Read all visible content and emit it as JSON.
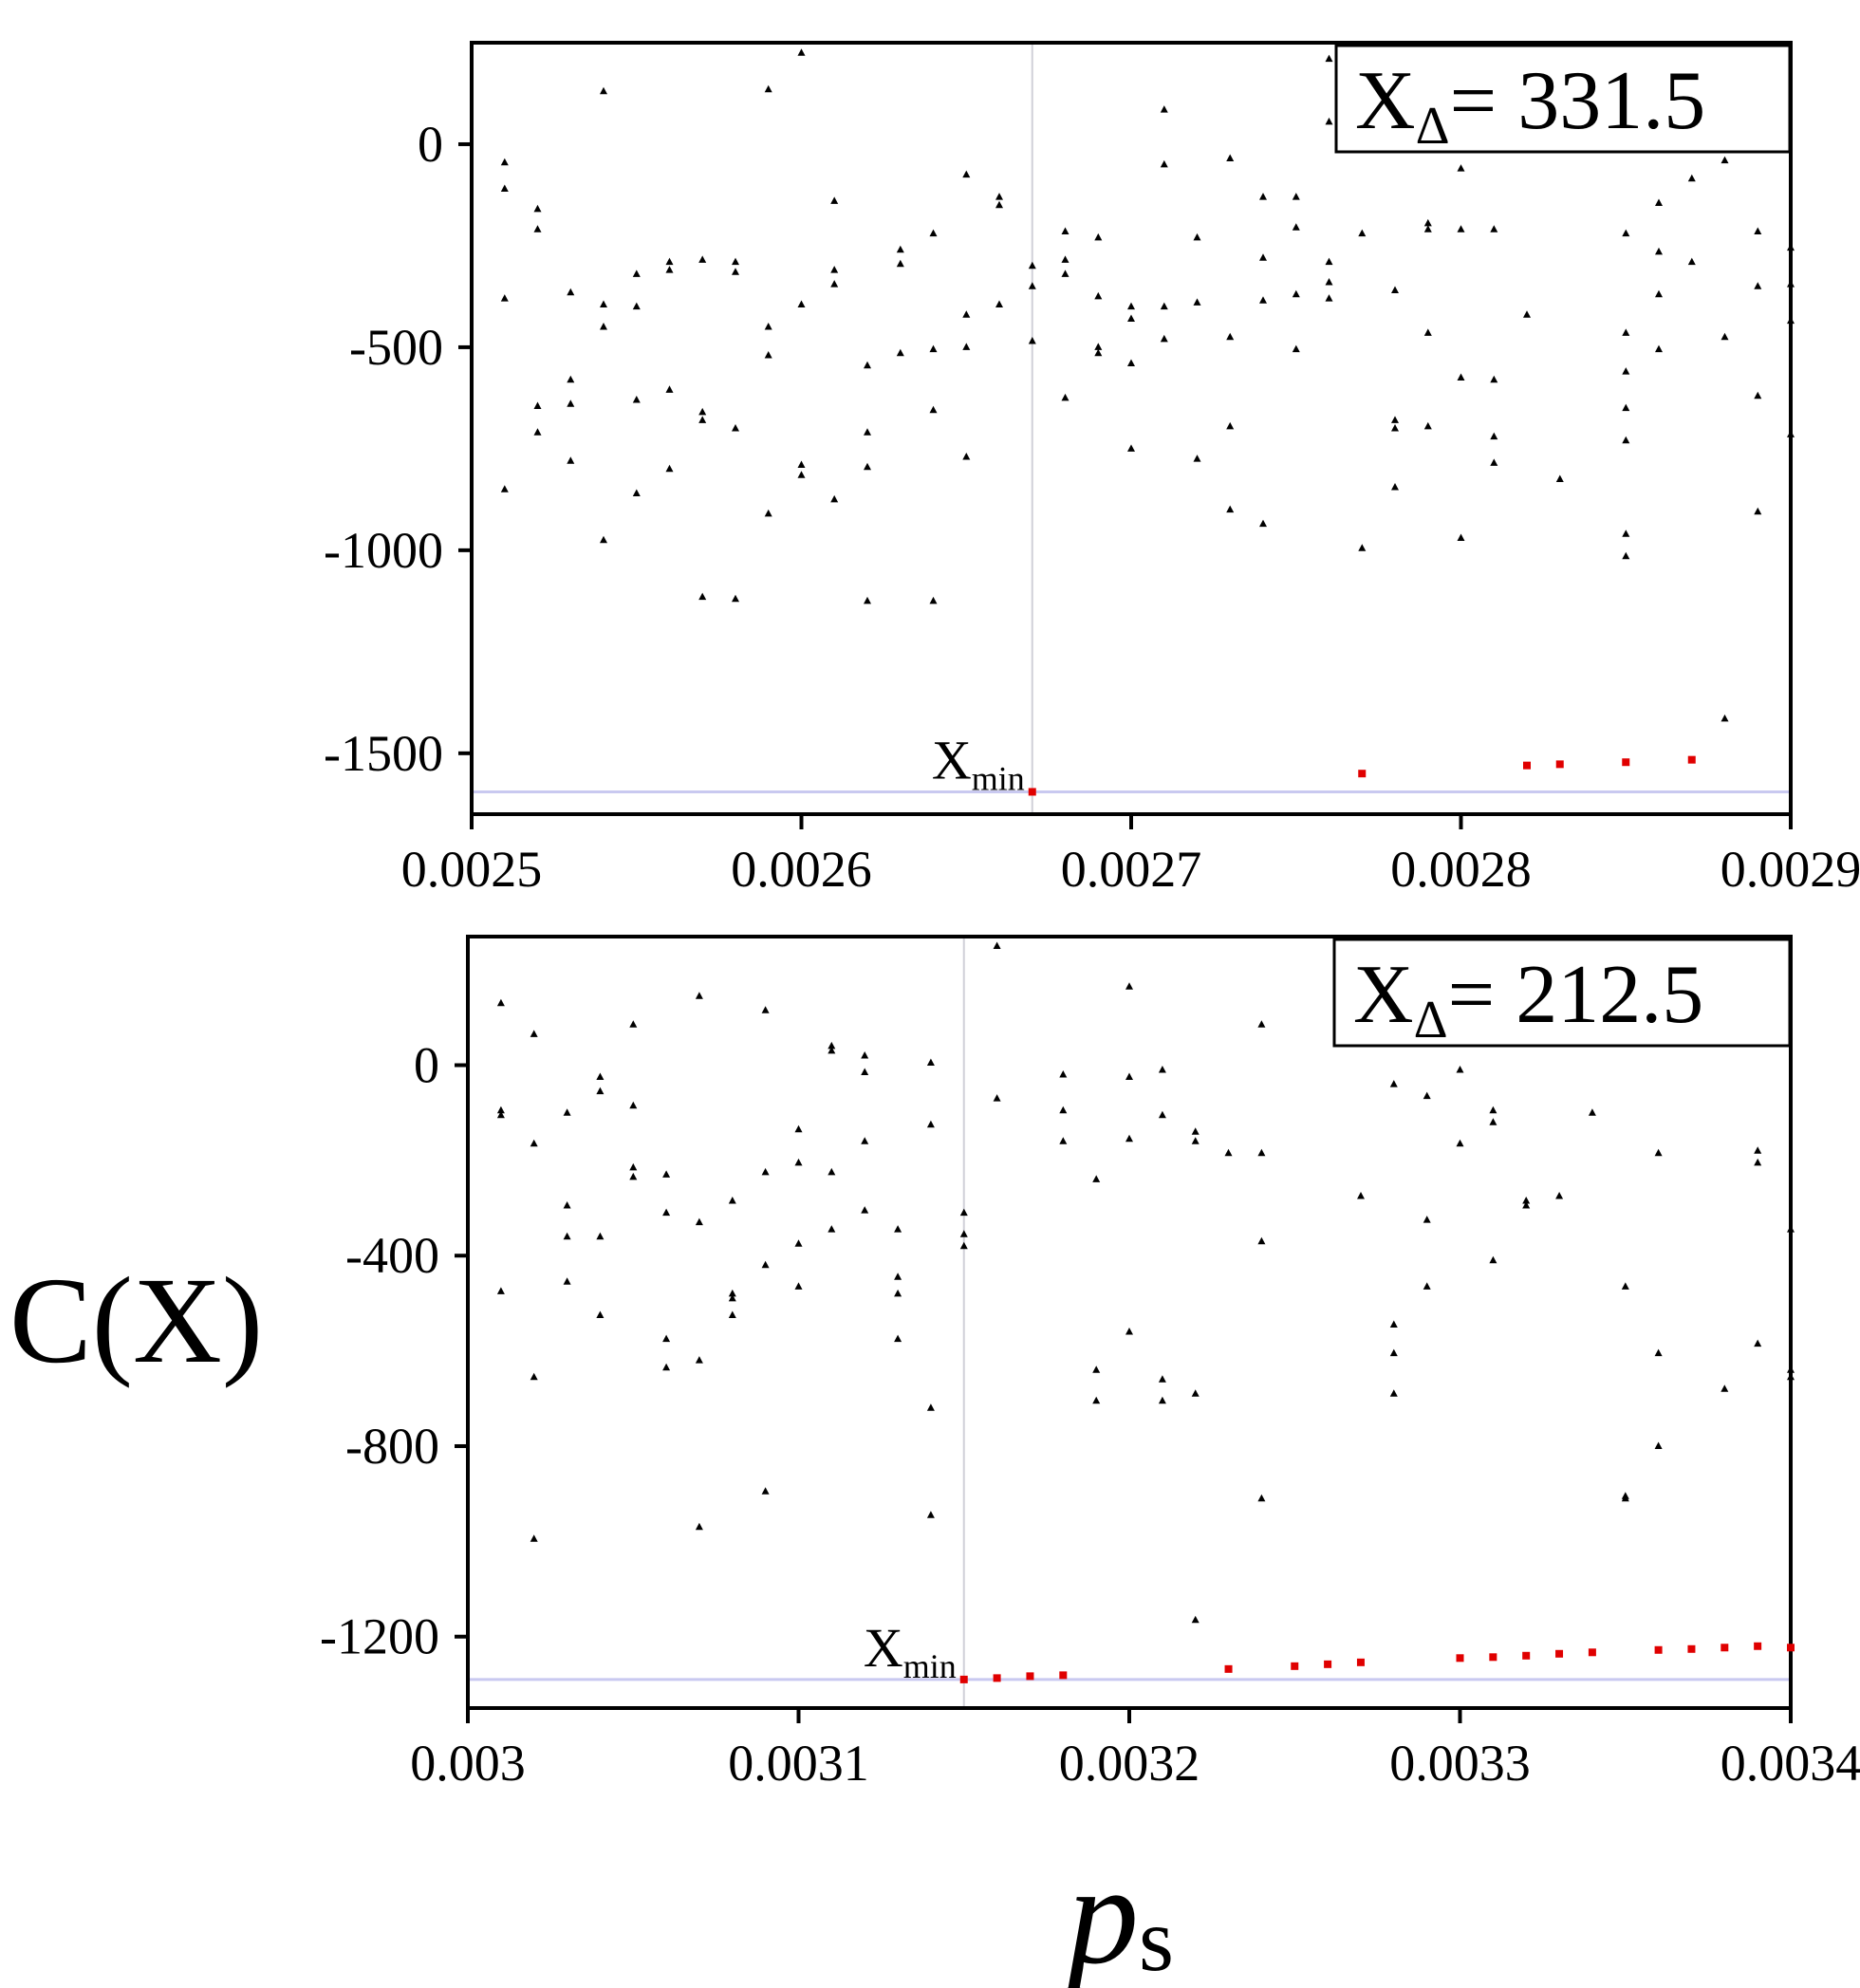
{
  "figure": {
    "ylabel": "C(X)",
    "xlabel": {
      "base": "p",
      "sub": "s"
    }
  },
  "colors": {
    "axis": "#000000",
    "marker": "#000000",
    "highlight": "#e00000",
    "min_line": "#c9c9f0",
    "vline": "#d0d0d8"
  },
  "chart_data": [
    {
      "type": "scatter",
      "xlim": [
        0.0025,
        0.0029
      ],
      "ylim": [
        -1650,
        250
      ],
      "xticks": [
        0.0025,
        0.0026,
        0.0027,
        0.0028,
        0.0029
      ],
      "xtick_labels": [
        "0.0025",
        "0.0026",
        "0.0027",
        "0.0028",
        "0.0029"
      ],
      "yticks": [
        0,
        -500,
        -1000,
        -1500
      ],
      "ytick_labels": [
        "0",
        "-500",
        "-1000",
        "-1500"
      ],
      "box": {
        "base": "X",
        "sub": "Δ",
        "value": "= 331.5"
      },
      "min_label": {
        "base": "X",
        "sub": "min"
      },
      "x_min": 0.00267,
      "y_min": -1595,
      "points": [
        [
          0.00251,
          -45
        ],
        [
          0.00251,
          -110
        ],
        [
          0.00251,
          -380
        ],
        [
          0.00251,
          -850
        ],
        [
          0.00252,
          -160
        ],
        [
          0.00252,
          -210
        ],
        [
          0.00252,
          -645
        ],
        [
          0.00252,
          -710
        ],
        [
          0.00253,
          -365
        ],
        [
          0.00253,
          -580
        ],
        [
          0.00253,
          -640
        ],
        [
          0.00253,
          -780
        ],
        [
          0.00254,
          130
        ],
        [
          0.00254,
          -395
        ],
        [
          0.00254,
          -450
        ],
        [
          0.00254,
          -975
        ],
        [
          0.00255,
          -320
        ],
        [
          0.00255,
          -400
        ],
        [
          0.00255,
          -630
        ],
        [
          0.00255,
          -860
        ],
        [
          0.00256,
          -290
        ],
        [
          0.00256,
          -310
        ],
        [
          0.00256,
          -605
        ],
        [
          0.00256,
          -800
        ],
        [
          0.00257,
          -285
        ],
        [
          0.00257,
          -660
        ],
        [
          0.00257,
          -680
        ],
        [
          0.00257,
          -1115
        ],
        [
          0.00258,
          -290
        ],
        [
          0.00258,
          -315
        ],
        [
          0.00258,
          -700
        ],
        [
          0.00258,
          -1120
        ],
        [
          0.00259,
          135
        ],
        [
          0.00259,
          -450
        ],
        [
          0.00259,
          -520
        ],
        [
          0.00259,
          -910
        ],
        [
          0.0026,
          225
        ],
        [
          0.0026,
          -395
        ],
        [
          0.0026,
          -790
        ],
        [
          0.0026,
          -815
        ],
        [
          0.00261,
          -140
        ],
        [
          0.00261,
          -310
        ],
        [
          0.00261,
          -345
        ],
        [
          0.00261,
          -875
        ],
        [
          0.00262,
          -545
        ],
        [
          0.00262,
          -710
        ],
        [
          0.00262,
          -795
        ],
        [
          0.00262,
          -1125
        ],
        [
          0.00263,
          -260
        ],
        [
          0.00263,
          -295
        ],
        [
          0.00263,
          -515
        ],
        [
          0.00264,
          -220
        ],
        [
          0.00264,
          -505
        ],
        [
          0.00264,
          -655
        ],
        [
          0.00264,
          -1125
        ],
        [
          0.00265,
          -75
        ],
        [
          0.00265,
          -420
        ],
        [
          0.00265,
          -500
        ],
        [
          0.00265,
          -770
        ],
        [
          0.00266,
          -130
        ],
        [
          0.00266,
          -150
        ],
        [
          0.00266,
          -395
        ],
        [
          0.00267,
          -300
        ],
        [
          0.00267,
          -350
        ],
        [
          0.00267,
          -485
        ],
        [
          0.00268,
          -215
        ],
        [
          0.00268,
          -285
        ],
        [
          0.00268,
          -320
        ],
        [
          0.00268,
          -625
        ],
        [
          0.00269,
          -230
        ],
        [
          0.00269,
          -375
        ],
        [
          0.00269,
          -500
        ],
        [
          0.00269,
          -515
        ],
        [
          0.0027,
          -400
        ],
        [
          0.0027,
          -430
        ],
        [
          0.0027,
          -540
        ],
        [
          0.0027,
          -750
        ],
        [
          0.00271,
          85
        ],
        [
          0.00271,
          -50
        ],
        [
          0.00271,
          -400
        ],
        [
          0.00271,
          -480
        ],
        [
          0.00272,
          -230
        ],
        [
          0.00272,
          -390
        ],
        [
          0.00272,
          -775
        ],
        [
          0.00273,
          -35
        ],
        [
          0.00273,
          -475
        ],
        [
          0.00273,
          -695
        ],
        [
          0.00273,
          -900
        ],
        [
          0.00274,
          -130
        ],
        [
          0.00274,
          -280
        ],
        [
          0.00274,
          -385
        ],
        [
          0.00274,
          -935
        ],
        [
          0.00275,
          -130
        ],
        [
          0.00275,
          -205
        ],
        [
          0.00275,
          -370
        ],
        [
          0.00275,
          -505
        ],
        [
          0.00276,
          210
        ],
        [
          0.00276,
          55
        ],
        [
          0.00276,
          -290
        ],
        [
          0.00276,
          -340
        ],
        [
          0.00276,
          -380
        ],
        [
          0.00277,
          -220
        ],
        [
          0.00277,
          -995
        ],
        [
          0.00278,
          -360
        ],
        [
          0.00278,
          -680
        ],
        [
          0.00278,
          -700
        ],
        [
          0.00278,
          -845
        ],
        [
          0.00279,
          -195
        ],
        [
          0.00279,
          -210
        ],
        [
          0.00279,
          -465
        ],
        [
          0.00279,
          -695
        ],
        [
          0.0028,
          -60
        ],
        [
          0.0028,
          -210
        ],
        [
          0.0028,
          -575
        ],
        [
          0.0028,
          -970
        ],
        [
          0.00281,
          -210
        ],
        [
          0.00281,
          -580
        ],
        [
          0.00281,
          -720
        ],
        [
          0.00281,
          -785
        ],
        [
          0.00282,
          -420
        ],
        [
          0.00283,
          -825
        ],
        [
          0.00285,
          -220
        ],
        [
          0.00285,
          -465
        ],
        [
          0.00285,
          -560
        ],
        [
          0.00285,
          -650
        ],
        [
          0.00285,
          -730
        ],
        [
          0.00285,
          -960
        ],
        [
          0.00285,
          -1015
        ],
        [
          0.00286,
          -145
        ],
        [
          0.00286,
          -265
        ],
        [
          0.00286,
          -370
        ],
        [
          0.00286,
          -505
        ],
        [
          0.00287,
          -85
        ],
        [
          0.00287,
          -290
        ],
        [
          0.00288,
          -40
        ],
        [
          0.00288,
          -475
        ],
        [
          0.00288,
          -1415
        ],
        [
          0.00289,
          -215
        ],
        [
          0.00289,
          -350
        ],
        [
          0.00289,
          -620
        ],
        [
          0.00289,
          -905
        ],
        [
          0.0029,
          -255
        ],
        [
          0.0029,
          -345
        ],
        [
          0.0029,
          -435
        ],
        [
          0.0029,
          -715
        ]
      ],
      "highlight_points": [
        [
          0.00267,
          -1595
        ],
        [
          0.00277,
          -1550
        ],
        [
          0.00282,
          -1530
        ],
        [
          0.00283,
          -1527
        ],
        [
          0.00285,
          -1522
        ],
        [
          0.00287,
          -1516
        ]
      ]
    },
    {
      "type": "scatter",
      "xlim": [
        0.003,
        0.0034
      ],
      "ylim": [
        -1350,
        270
      ],
      "xticks": [
        0.003,
        0.0031,
        0.0032,
        0.0033,
        0.0034
      ],
      "xtick_labels": [
        "0.003",
        "0.0031",
        "0.0032",
        "0.0033",
        "0.0034"
      ],
      "yticks": [
        0,
        -400,
        -800,
        -1200
      ],
      "ytick_labels": [
        "0",
        "-400",
        "-800",
        "-1200"
      ],
      "box": {
        "base": "X",
        "sub": "Δ",
        "value": "= 212.5"
      },
      "min_label": {
        "base": "X",
        "sub": "min"
      },
      "x_min": 0.00315,
      "y_min": -1290,
      "points": [
        [
          0.00301,
          130
        ],
        [
          0.00301,
          -95
        ],
        [
          0.00301,
          -105
        ],
        [
          0.00301,
          -475
        ],
        [
          0.00302,
          65
        ],
        [
          0.00302,
          -165
        ],
        [
          0.00302,
          -655
        ],
        [
          0.00302,
          -995
        ],
        [
          0.00303,
          -100
        ],
        [
          0.00303,
          -295
        ],
        [
          0.00303,
          -360
        ],
        [
          0.00303,
          -455
        ],
        [
          0.00304,
          -25
        ],
        [
          0.00304,
          -55
        ],
        [
          0.00304,
          -360
        ],
        [
          0.00304,
          -525
        ],
        [
          0.00305,
          85
        ],
        [
          0.00305,
          -85
        ],
        [
          0.00305,
          -215
        ],
        [
          0.00305,
          -235
        ],
        [
          0.00306,
          -230
        ],
        [
          0.00306,
          -310
        ],
        [
          0.00306,
          -575
        ],
        [
          0.00306,
          -635
        ],
        [
          0.00307,
          145
        ],
        [
          0.00307,
          -330
        ],
        [
          0.00307,
          -620
        ],
        [
          0.00307,
          -970
        ],
        [
          0.00308,
          -285
        ],
        [
          0.00308,
          -480
        ],
        [
          0.00308,
          -490
        ],
        [
          0.00308,
          -525
        ],
        [
          0.00309,
          115
        ],
        [
          0.00309,
          -225
        ],
        [
          0.00309,
          -420
        ],
        [
          0.00309,
          -895
        ],
        [
          0.0031,
          -135
        ],
        [
          0.0031,
          -205
        ],
        [
          0.0031,
          -375
        ],
        [
          0.0031,
          -465
        ],
        [
          0.00311,
          40
        ],
        [
          0.00311,
          30
        ],
        [
          0.00311,
          -225
        ],
        [
          0.00311,
          -345
        ],
        [
          0.00312,
          20
        ],
        [
          0.00312,
          -15
        ],
        [
          0.00312,
          -160
        ],
        [
          0.00312,
          -305
        ],
        [
          0.00313,
          -345
        ],
        [
          0.00313,
          -445
        ],
        [
          0.00313,
          -480
        ],
        [
          0.00313,
          -575
        ],
        [
          0.00314,
          5
        ],
        [
          0.00314,
          -125
        ],
        [
          0.00314,
          -720
        ],
        [
          0.00314,
          -945
        ],
        [
          0.00315,
          -310
        ],
        [
          0.00315,
          -355
        ],
        [
          0.00315,
          -380
        ],
        [
          0.00316,
          250
        ],
        [
          0.00316,
          -70
        ],
        [
          0.00318,
          -20
        ],
        [
          0.00318,
          -95
        ],
        [
          0.00318,
          -160
        ],
        [
          0.00319,
          -240
        ],
        [
          0.00319,
          -640
        ],
        [
          0.00319,
          -705
        ],
        [
          0.0032,
          165
        ],
        [
          0.0032,
          -25
        ],
        [
          0.0032,
          -155
        ],
        [
          0.0032,
          -560
        ],
        [
          0.00321,
          -10
        ],
        [
          0.00321,
          -105
        ],
        [
          0.00321,
          -660
        ],
        [
          0.00321,
          -705
        ],
        [
          0.00322,
          -140
        ],
        [
          0.00322,
          -160
        ],
        [
          0.00322,
          -690
        ],
        [
          0.00322,
          -1165
        ],
        [
          0.00323,
          -185
        ],
        [
          0.00324,
          85
        ],
        [
          0.00324,
          -185
        ],
        [
          0.00324,
          -370
        ],
        [
          0.00324,
          -910
        ],
        [
          0.00327,
          -275
        ],
        [
          0.00328,
          -40
        ],
        [
          0.00328,
          -545
        ],
        [
          0.00328,
          -605
        ],
        [
          0.00328,
          -690
        ],
        [
          0.00329,
          -65
        ],
        [
          0.00329,
          -325
        ],
        [
          0.00329,
          -465
        ],
        [
          0.0033,
          -10
        ],
        [
          0.0033,
          -165
        ],
        [
          0.00331,
          -95
        ],
        [
          0.00331,
          -120
        ],
        [
          0.00331,
          -410
        ],
        [
          0.00332,
          -285
        ],
        [
          0.00332,
          -295
        ],
        [
          0.00333,
          -275
        ],
        [
          0.00334,
          -100
        ],
        [
          0.00335,
          45
        ],
        [
          0.00335,
          -465
        ],
        [
          0.00335,
          -905
        ],
        [
          0.00335,
          -910
        ],
        [
          0.00336,
          -185
        ],
        [
          0.00336,
          -605
        ],
        [
          0.00336,
          -800
        ],
        [
          0.00338,
          -680
        ],
        [
          0.00339,
          -180
        ],
        [
          0.00339,
          -205
        ],
        [
          0.00339,
          -585
        ],
        [
          0.0034,
          -345
        ],
        [
          0.0034,
          -640
        ],
        [
          0.0034,
          -655
        ]
      ],
      "highlight_points": [
        [
          0.00315,
          -1290
        ],
        [
          0.00316,
          -1287
        ],
        [
          0.00317,
          -1283
        ],
        [
          0.00318,
          -1281
        ],
        [
          0.00323,
          -1268
        ],
        [
          0.00325,
          -1262
        ],
        [
          0.00326,
          -1258
        ],
        [
          0.00327,
          -1254
        ],
        [
          0.0033,
          -1245
        ],
        [
          0.00331,
          -1243
        ],
        [
          0.00332,
          -1240
        ],
        [
          0.00333,
          -1236
        ],
        [
          0.00334,
          -1233
        ],
        [
          0.00336,
          -1228
        ],
        [
          0.00337,
          -1226
        ],
        [
          0.00338,
          -1223
        ],
        [
          0.00339,
          -1220
        ],
        [
          0.0034,
          -1223
        ]
      ]
    }
  ]
}
